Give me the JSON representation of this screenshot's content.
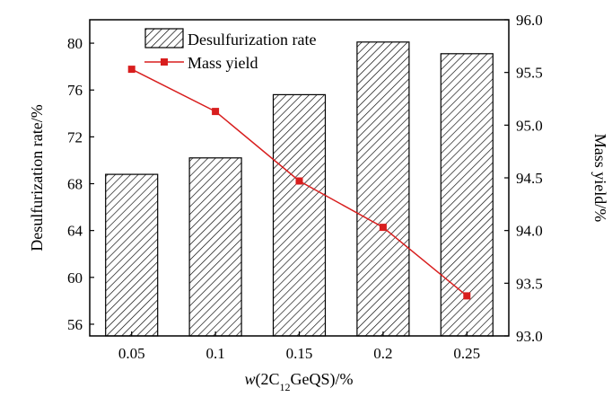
{
  "chart_data": {
    "type": "bar+line",
    "categories": [
      "0.05",
      "0.1",
      "0.15",
      "0.2",
      "0.25"
    ],
    "series": [
      {
        "name": "Desulfurization rate",
        "type": "bar",
        "axis": "left",
        "values": [
          68.8,
          70.2,
          75.6,
          80.1,
          79.1
        ],
        "color": "#000000"
      },
      {
        "name": "Mass yield",
        "type": "line",
        "axis": "right",
        "values": [
          95.53,
          95.13,
          94.47,
          94.03,
          93.38
        ],
        "color": "#d81e1e"
      }
    ],
    "xlabel": {
      "italic": "w",
      "pre": "(2C",
      "sub": "12",
      "post": "GeQS)/%"
    },
    "ylabel_left": "Desulfurization rate/%",
    "ylabel_right": "Mass yield/%",
    "ylim_left": [
      55,
      82
    ],
    "yticks_left": [
      "56",
      "60",
      "64",
      "68",
      "72",
      "76",
      "80"
    ],
    "ylim_right": [
      93.0,
      96.0
    ],
    "yticks_right": [
      "93.0",
      "93.5",
      "94.0",
      "94.5",
      "95.0",
      "95.5",
      "96.0"
    ],
    "grid": false,
    "legend_position": "top-left"
  }
}
